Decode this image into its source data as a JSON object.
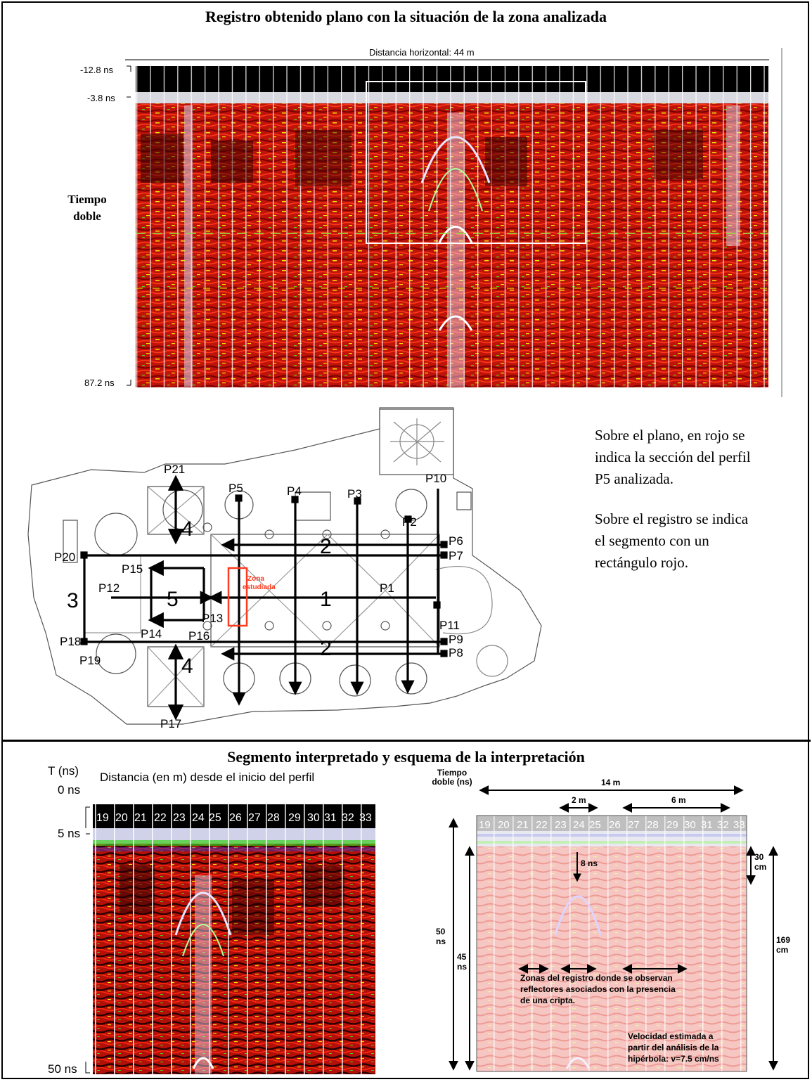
{
  "section1": {
    "title": "Registro obtenido plano con la situación de la zona analizada",
    "radargram": {
      "top_label": "Distancia horizontal: 44 m",
      "tick_top": "-12.8 ns",
      "tick_mid": "-3.8 ns",
      "tick_bottom": "87.2 ns",
      "side_label_1": "Tiempo",
      "side_label_2": "doble"
    },
    "plan": {
      "labels": [
        "P21",
        "P5",
        "P4",
        "P3",
        "P10",
        "P2",
        "P6",
        "P7",
        "P20",
        "P15",
        "P12",
        "P13",
        "P14",
        "P16",
        "P1",
        "P11",
        "P18",
        "P19",
        "P9",
        "P8",
        "P17"
      ],
      "numbers": [
        "4",
        "2",
        "3",
        "5",
        "1",
        "2",
        "4"
      ],
      "zone_label_1": "Zona",
      "zone_label_2": "estudiada"
    },
    "side_text_1": "Sobre el plano, en rojo se indica la sección del perfil P5 analizada.",
    "side_text_2": "Sobre el registro se indica el segmento con un rectángulo rojo."
  },
  "section2": {
    "title": "Segmento interpretado y esquema de la interpretación",
    "left": {
      "axis_title": "T (ns)",
      "top_label": "Distancia (en m) desde el inicio del perfil",
      "tick_0": "0 ns",
      "tick_5": "5 ns",
      "tick_50": "50 ns",
      "distances": [
        "19",
        "20",
        "21",
        "22",
        "23",
        "24",
        "25",
        "26",
        "27",
        "28",
        "29",
        "30",
        "31",
        "32",
        "33"
      ]
    },
    "right": {
      "y_title_1": "Tiempo",
      "y_title_2": "doble (ns)",
      "span_total": "14 m",
      "span_2": "2 m",
      "span_6": "6 m",
      "depth_8": "8 ns",
      "t50_1": "50",
      "t50_2": "ns",
      "t45_1": "45",
      "t45_2": "ns",
      "d30_1": "30",
      "d30_2": "cm",
      "d169_1": "169",
      "d169_2": "cm",
      "note_1": "Zonas del registro donde se observan",
      "note_2": "reflectores asociados con la presencia",
      "note_3": "de una cripta.",
      "vel_1": "Velocidad estimada a",
      "vel_2": "partir del análisis de la",
      "vel_3": "hipérbola: v=7.5 cm/ns",
      "distances": [
        "19",
        "20",
        "21",
        "22",
        "23",
        "24",
        "25",
        "26",
        "27",
        "28",
        "29",
        "30",
        "31",
        "32",
        "33"
      ]
    }
  },
  "colors": {
    "radar_bg": "#c0140a",
    "radar_dark": "#3a0000",
    "highlight_zone": "#ff3b1f",
    "frame": "#000000"
  }
}
